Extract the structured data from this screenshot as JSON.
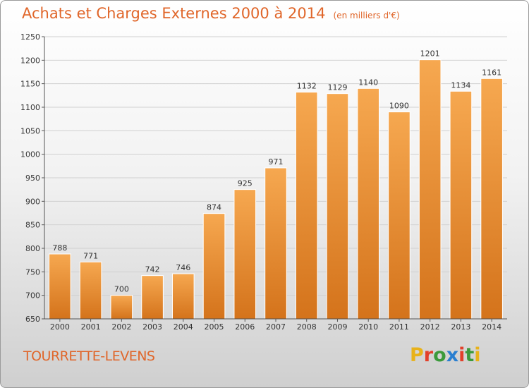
{
  "header": {
    "title": "Achats et Charges Externes 2000 à 2014",
    "subtitle": "(en milliers d'€)"
  },
  "footer": {
    "commune": "TOURRETTE-LEVENS",
    "brand_letters": [
      "P",
      "r",
      "o",
      "x",
      "i",
      "t",
      "i"
    ],
    "brand_colors": [
      "#e8b21a",
      "#e2402a",
      "#3b9a3b",
      "#2a7fd0",
      "#e2402a",
      "#3b9a3b",
      "#e8b21a"
    ]
  },
  "colors": {
    "bar_light": "#f6a850",
    "bar_dark": "#d4731b",
    "grid": "#d0d0d0",
    "axis": "#555555"
  },
  "chart_data": {
    "type": "bar",
    "title": "Achats et Charges Externes 2000 à 2014",
    "subtitle": "(en milliers d'€)",
    "categories": [
      "2000",
      "2001",
      "2002",
      "2003",
      "2004",
      "2005",
      "2006",
      "2007",
      "2008",
      "2009",
      "2010",
      "2011",
      "2012",
      "2013",
      "2014"
    ],
    "values": [
      788,
      771,
      700,
      742,
      746,
      874,
      925,
      971,
      1132,
      1129,
      1140,
      1090,
      1201,
      1134,
      1161
    ],
    "ylim": [
      650,
      1250
    ],
    "yticks": [
      650,
      700,
      750,
      800,
      850,
      900,
      950,
      1000,
      1050,
      1100,
      1150,
      1200,
      1250
    ],
    "grid": true,
    "xlabel": "",
    "ylabel": ""
  }
}
